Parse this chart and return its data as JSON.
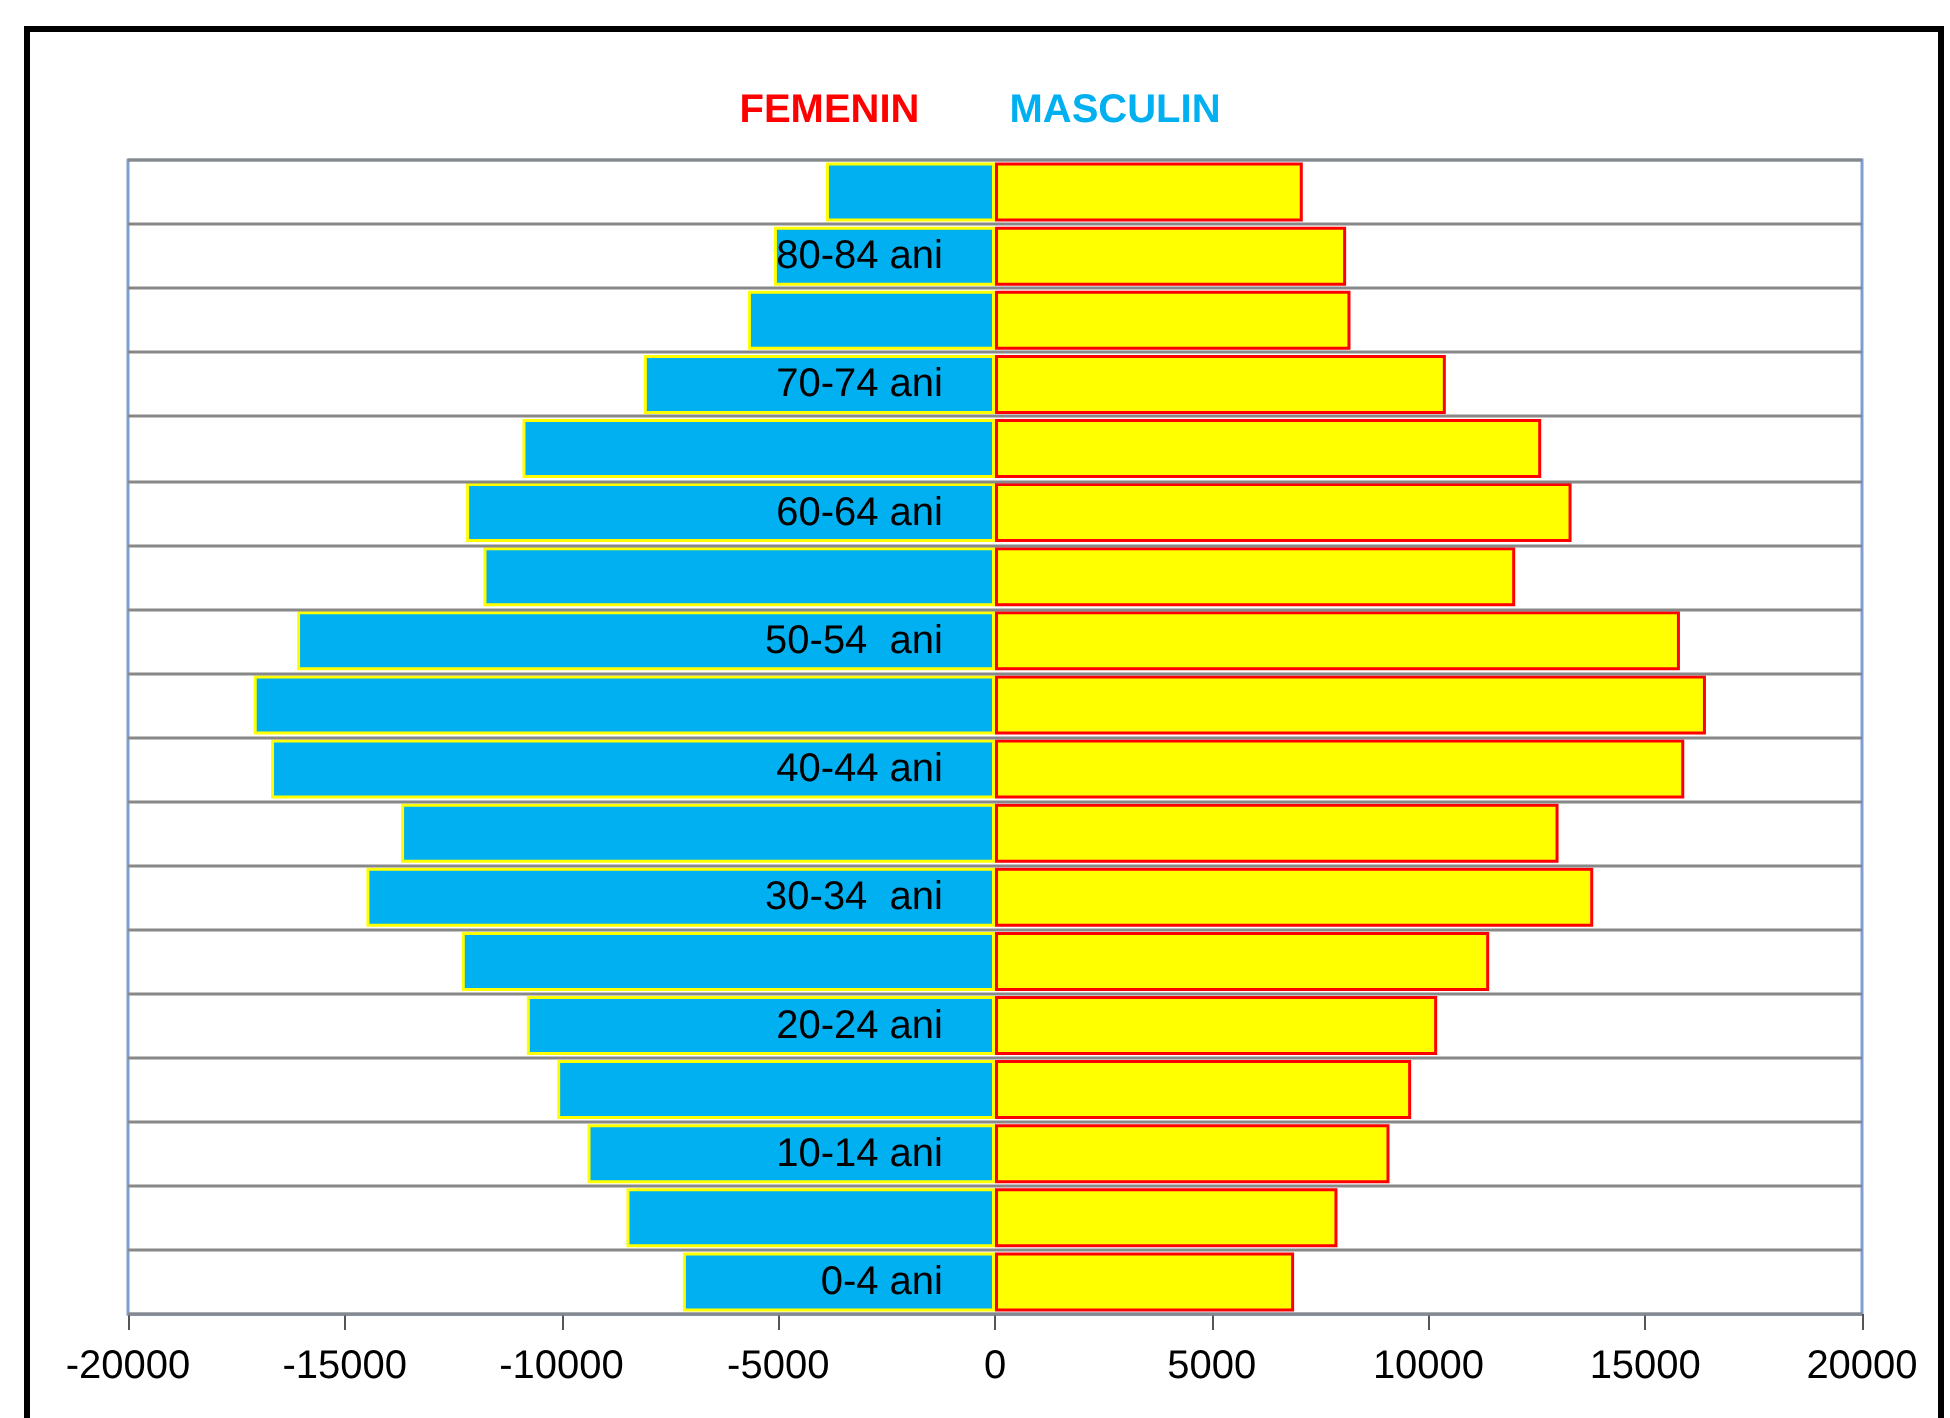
{
  "chart_data": {
    "type": "bar",
    "orientation": "horizontal",
    "categories": [
      null,
      "80-84 ani",
      null,
      "70-74 ani",
      null,
      "60-64 ani",
      null,
      "50-54  ani",
      null,
      "40-44 ani",
      null,
      "30-34  ani",
      null,
      "20-24 ani",
      null,
      "10-14 ani",
      null,
      "0-4 ani"
    ],
    "series": [
      {
        "name": "FEMENIN",
        "color": "#ffff00",
        "values": [
          7100,
          8100,
          8200,
          10400,
          12600,
          13300,
          12000,
          15800,
          16400,
          15900,
          13000,
          13800,
          11400,
          10200,
          9600,
          9100,
          7900,
          6900
        ]
      },
      {
        "name": "MASCULIN",
        "color": "#00b0f0",
        "values": [
          -3900,
          -5100,
          -5700,
          -8100,
          -10900,
          -12200,
          -11800,
          -16100,
          -17100,
          -16700,
          -13700,
          -14500,
          -12300,
          -10800,
          -10100,
          -9400,
          -8500,
          -7200
        ]
      }
    ],
    "xlim": [
      -20000,
      20000
    ],
    "xticks": [
      -20000,
      -15000,
      -10000,
      -5000,
      0,
      5000,
      10000,
      15000,
      20000
    ],
    "stacked": true,
    "grid": "y",
    "legend": "top"
  }
}
